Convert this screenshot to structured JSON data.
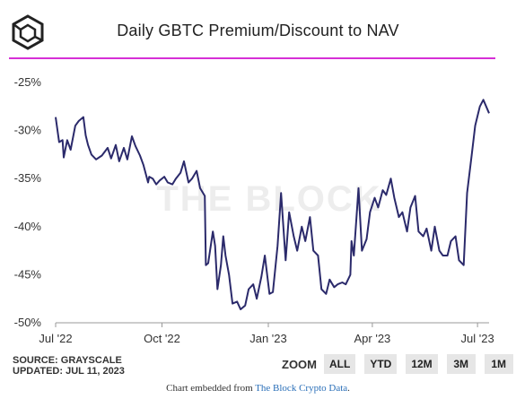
{
  "header": {
    "title": "Daily GBTC Premium/Discount to NAV",
    "logo_icon": "the-block-cube-logo"
  },
  "colors": {
    "accent_rule": "#d62fd6",
    "line": "#2b2a6b",
    "axis": "#999999"
  },
  "chart_data": {
    "type": "line",
    "title": "Daily GBTC Premium/Discount to NAV",
    "xlabel": "",
    "ylabel": "",
    "x_ticks": [
      "Jul '22",
      "Oct '22",
      "Jan '23",
      "Apr '23",
      "Jul '23"
    ],
    "y_ticks": [
      "-25%",
      "-30%",
      "-35%",
      "-40%",
      "-45%",
      "-50%"
    ],
    "ylim": [
      -50,
      -25
    ],
    "xlim": [
      "2022-07-01",
      "2023-07-11"
    ],
    "grid": false,
    "watermark": "THE BLOCK",
    "series": [
      {
        "x": [
          "2022-07-01",
          "2022-07-04",
          "2022-07-07",
          "2022-07-08",
          "2022-07-11",
          "2022-07-14",
          "2022-07-18",
          "2022-07-21",
          "2022-07-25",
          "2022-07-27",
          "2022-07-29",
          "2022-08-01",
          "2022-08-05",
          "2022-08-10",
          "2022-08-15",
          "2022-08-18",
          "2022-08-22",
          "2022-08-25",
          "2022-08-29",
          "2022-09-01",
          "2022-09-05",
          "2022-09-08",
          "2022-09-12",
          "2022-09-15",
          "2022-09-19",
          "2022-09-20",
          "2022-09-23",
          "2022-09-26",
          "2022-09-29",
          "2022-10-03",
          "2022-10-06",
          "2022-10-10",
          "2022-10-13",
          "2022-10-17",
          "2022-10-20",
          "2022-10-24",
          "2022-10-27",
          "2022-10-31",
          "2022-11-03",
          "2022-11-07",
          "2022-11-08",
          "2022-11-10",
          "2022-11-14",
          "2022-11-16",
          "2022-11-18",
          "2022-11-21",
          "2022-11-23",
          "2022-11-25",
          "2022-11-28",
          "2022-12-01",
          "2022-12-05",
          "2022-12-08",
          "2022-12-12",
          "2022-12-15",
          "2022-12-19",
          "2022-12-22",
          "2022-12-26",
          "2022-12-29",
          "2023-01-02",
          "2023-01-05",
          "2023-01-09",
          "2023-01-12",
          "2023-01-16",
          "2023-01-19",
          "2023-01-23",
          "2023-01-26",
          "2023-01-30",
          "2023-02-02",
          "2023-02-06",
          "2023-02-09",
          "2023-02-13",
          "2023-02-16",
          "2023-02-20",
          "2023-02-23",
          "2023-02-27",
          "2023-03-02",
          "2023-03-06",
          "2023-03-09",
          "2023-03-13",
          "2023-03-14",
          "2023-03-16",
          "2023-03-20",
          "2023-03-23",
          "2023-03-27",
          "2023-03-30",
          "2023-04-03",
          "2023-04-06",
          "2023-04-10",
          "2023-04-13",
          "2023-04-17",
          "2023-04-20",
          "2023-04-24",
          "2023-04-27",
          "2023-05-01",
          "2023-05-04",
          "2023-05-08",
          "2023-05-11",
          "2023-05-15",
          "2023-05-18",
          "2023-05-22",
          "2023-05-25",
          "2023-05-29",
          "2023-06-01",
          "2023-06-05",
          "2023-06-08",
          "2023-06-12",
          "2023-06-15",
          "2023-06-19",
          "2023-06-22",
          "2023-06-26",
          "2023-06-29",
          "2023-07-03",
          "2023-07-06",
          "2023-07-11"
        ],
        "y": [
          -28.6,
          -31.2,
          -31.0,
          -32.8,
          -31.0,
          -32.0,
          -29.5,
          -29.0,
          -28.6,
          -30.5,
          -31.5,
          -32.5,
          -33.0,
          -32.6,
          -31.8,
          -32.9,
          -31.5,
          -33.2,
          -31.8,
          -33.0,
          -30.6,
          -31.6,
          -32.6,
          -33.6,
          -35.4,
          -34.8,
          -35.0,
          -35.6,
          -35.2,
          -34.8,
          -35.4,
          -35.6,
          -35.0,
          -34.4,
          -33.2,
          -35.4,
          -35.0,
          -34.2,
          -36.0,
          -36.8,
          -44.0,
          -43.8,
          -40.5,
          -42.0,
          -46.5,
          -44.0,
          -41.0,
          -43.0,
          -45.0,
          -48.0,
          -47.8,
          -48.6,
          -48.2,
          -46.5,
          -46.0,
          -47.5,
          -45.2,
          -43.0,
          -47.0,
          -46.8,
          -42.0,
          -36.5,
          -43.5,
          -38.5,
          -41.0,
          -42.5,
          -40.0,
          -41.5,
          -39.0,
          -42.5,
          -43.0,
          -46.5,
          -47.0,
          -45.5,
          -46.3,
          -46.0,
          -45.8,
          -46.0,
          -45.0,
          -41.5,
          -43.0,
          -36.0,
          -42.5,
          -41.3,
          -38.5,
          -37.0,
          -38.0,
          -36.2,
          -36.7,
          -35.0,
          -37.0,
          -39.0,
          -38.5,
          -40.5,
          -38.0,
          -36.8,
          -40.5,
          -41.0,
          -40.2,
          -42.5,
          -40.0,
          -42.5,
          -43.0,
          -43.0,
          -41.5,
          -41.0,
          -43.5,
          -44.0,
          -36.5,
          -32.5,
          -29.5,
          -27.5,
          -26.8,
          -28.2
        ]
      }
    ]
  },
  "source": {
    "line1": "SOURCE: GRAYSCALE",
    "line2": "UPDATED: JUL 11, 2023"
  },
  "zoom": {
    "label": "ZOOM",
    "buttons": [
      "ALL",
      "YTD",
      "12M",
      "3M",
      "1M"
    ]
  },
  "footer": {
    "prefix": "Chart embedded from ",
    "link": "The Block Crypto Data",
    "suffix": "."
  }
}
